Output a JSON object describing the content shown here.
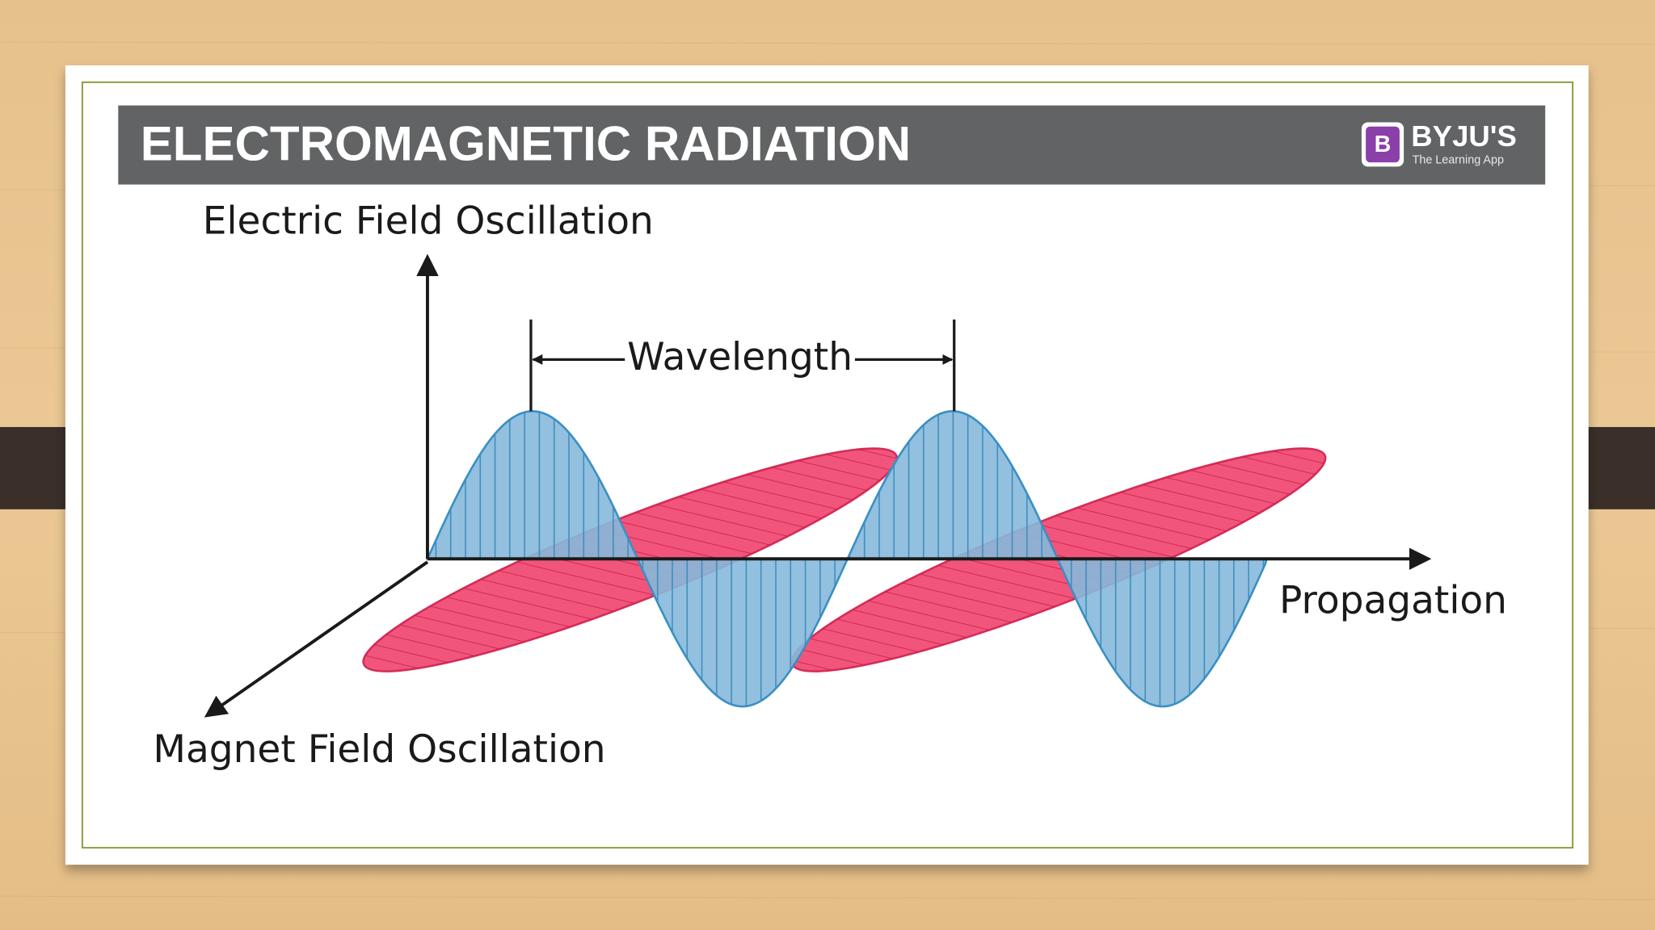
{
  "header": {
    "title": "ELECTROMAGNETIC RADIATION",
    "logo": {
      "mark": "B",
      "name": "BYJU'S",
      "tagline": "The Learning App"
    }
  },
  "diagram": {
    "labels": {
      "y_axis": "Electric Field Oscillation",
      "wavelength": "Wavelength",
      "x_axis": "Propagation",
      "z_axis": "Magnet Field Oscillation"
    }
  }
}
